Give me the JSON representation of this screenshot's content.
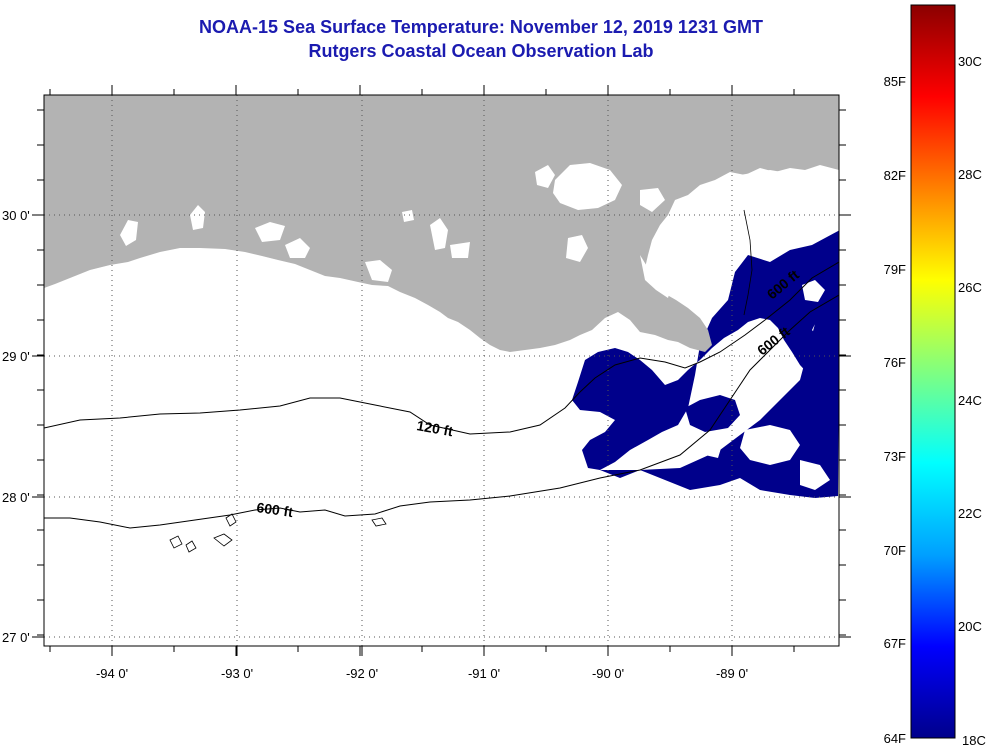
{
  "title_line1": "NOAA-15 Sea Surface Temperature:  November 12, 2019 1231 GMT",
  "title_line2": "Rutgers Coastal Ocean Observation Lab",
  "map": {
    "lon_labels": [
      "-94 0'",
      "-93 0'",
      "-92 0'",
      "-91 0'",
      "-90 0'",
      "-89 0'"
    ],
    "lat_labels": [
      "30 0'",
      "29 0'",
      "28 0'",
      "27 0'"
    ],
    "contour_labels": {
      "c120": "120 ft",
      "c600": "600 ft",
      "c600b": "600 ft",
      "c600c": "600 ft"
    },
    "colors": {
      "land": "#b3b3b3",
      "cloud": "#ffffff",
      "cold_water": "#00008b"
    }
  },
  "colorbar": {
    "f_labels": [
      "85F",
      "82F",
      "79F",
      "76F",
      "73F",
      "70F",
      "67F",
      "64F"
    ],
    "c_labels": [
      "30C",
      "28C",
      "26C",
      "24C",
      "22C",
      "20C",
      "18C"
    ],
    "stops": [
      "#00008b",
      "#0000ff",
      "#00a0ff",
      "#00ffff",
      "#80ff80",
      "#ffff00",
      "#ff8000",
      "#ff0000",
      "#8b0000"
    ]
  }
}
